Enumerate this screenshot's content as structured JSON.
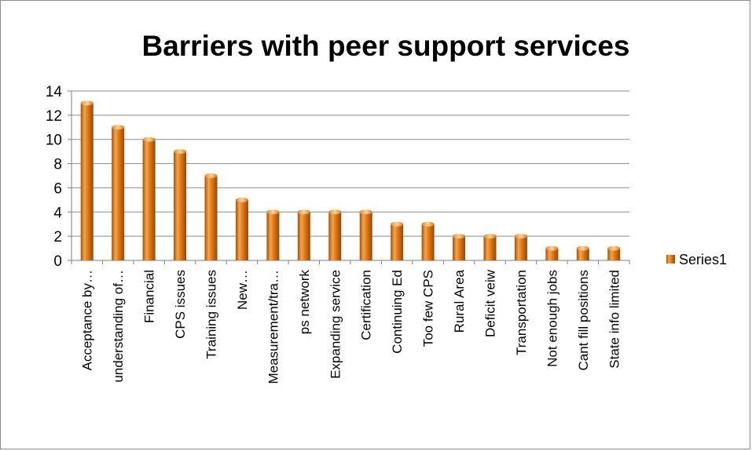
{
  "chart_data": {
    "type": "bar",
    "title": "Barriers with peer support services",
    "xlabel": "",
    "ylabel": "",
    "ylim": [
      0,
      14
    ],
    "yticks": [
      0,
      2,
      4,
      6,
      8,
      10,
      12,
      14
    ],
    "grid": true,
    "legend_position": "right",
    "categories": [
      "Acceptance by…",
      "understanding of…",
      "Financial",
      "CPS issues",
      "Training issues",
      "New…",
      "Measurement/tra…",
      "ps network",
      "Expanding service",
      "Certification",
      "Continuing Ed",
      "Too few CPS",
      "Rural Area",
      "Deficit veiw",
      "Transportation",
      "Not enough jobs",
      "Cant fill positions",
      "State info limited"
    ],
    "series": [
      {
        "name": "Series1",
        "color": "#e07b1a",
        "values": [
          13,
          11,
          10,
          9,
          7,
          5,
          4,
          4,
          4,
          4,
          3,
          3,
          2,
          2,
          2,
          1,
          1,
          1
        ]
      }
    ]
  }
}
